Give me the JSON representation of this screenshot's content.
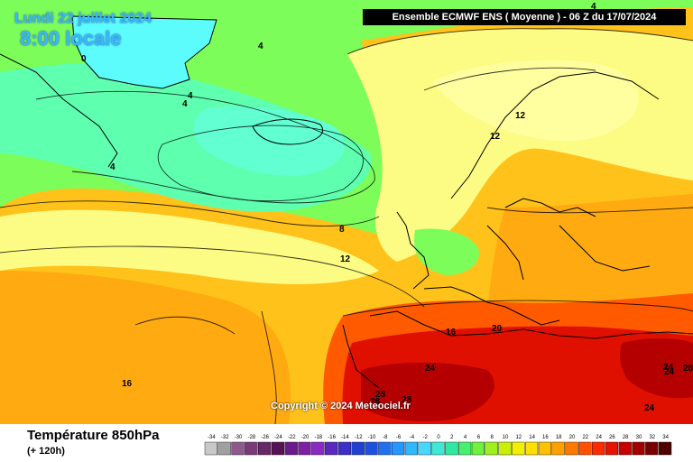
{
  "date_label": "Lundi 22 juillet 2024",
  "time_label": "8:00 locale",
  "header_text": "Ensemble ECMWF ENS  ( Moyenne )  -  06 Z du 17/07/2024",
  "copyright": "Copyright © 2024 Meteociel.fr",
  "footer": {
    "title": "Température 850hPa",
    "subtitle": "(+ 120h)"
  },
  "contour_labels": [
    {
      "text": "0"
    },
    {
      "text": "4"
    },
    {
      "text": "4"
    },
    {
      "text": "4"
    },
    {
      "text": "4"
    },
    {
      "text": "4"
    },
    {
      "text": "8"
    },
    {
      "text": "12"
    },
    {
      "text": "12"
    },
    {
      "text": "12"
    },
    {
      "text": "16"
    },
    {
      "text": "16"
    },
    {
      "text": "20"
    },
    {
      "text": "24"
    },
    {
      "text": "24"
    },
    {
      "text": "24"
    },
    {
      "text": "28"
    },
    {
      "text": "28"
    },
    {
      "text": "28"
    },
    {
      "text": "28"
    },
    {
      "text": "24"
    }
  ],
  "scale": {
    "ticks": [
      "-34",
      "-32",
      "-30",
      "-28",
      "-26",
      "-24",
      "-22",
      "-20",
      "-18",
      "-16",
      "-14",
      "-12",
      "-10",
      "-8",
      "-6",
      "-4",
      "-2",
      "0",
      "2",
      "4",
      "6",
      "8",
      "10",
      "12",
      "14",
      "16",
      "18",
      "20",
      "22",
      "24",
      "26",
      "28",
      "30",
      "32",
      "34"
    ],
    "colors": [
      "#c8c8c8",
      "#a0a0a0",
      "#8c5a8c",
      "#7a3a7a",
      "#682868",
      "#561456",
      "#6b1a8a",
      "#7e20a5",
      "#8a2ac0",
      "#5a28c0",
      "#3a30c8",
      "#2040d0",
      "#1e50e0",
      "#2070f0",
      "#2896ff",
      "#30b8ff",
      "#48d8ff",
      "#40e8d8",
      "#30e8a0",
      "#48f070",
      "#70f040",
      "#a0f020",
      "#c8f000",
      "#f0f000",
      "#ffe000",
      "#ffc000",
      "#ffa000",
      "#ff7800",
      "#ff5000",
      "#ff2a00",
      "#e41400",
      "#c80000",
      "#a00000",
      "#780000",
      "#500000"
    ]
  },
  "colors": {
    "ocean_green": "#7dfd5a",
    "cold_cyan": "#5fffb0",
    "very_cold": "#5dfcfc",
    "warm_yellow": "#fcfc84",
    "light_yellow": "#ffffa0",
    "orange": "#ffaa10",
    "red_orange": "#ff5000",
    "hot_red": "#e01000",
    "deep_red": "#a00000"
  }
}
